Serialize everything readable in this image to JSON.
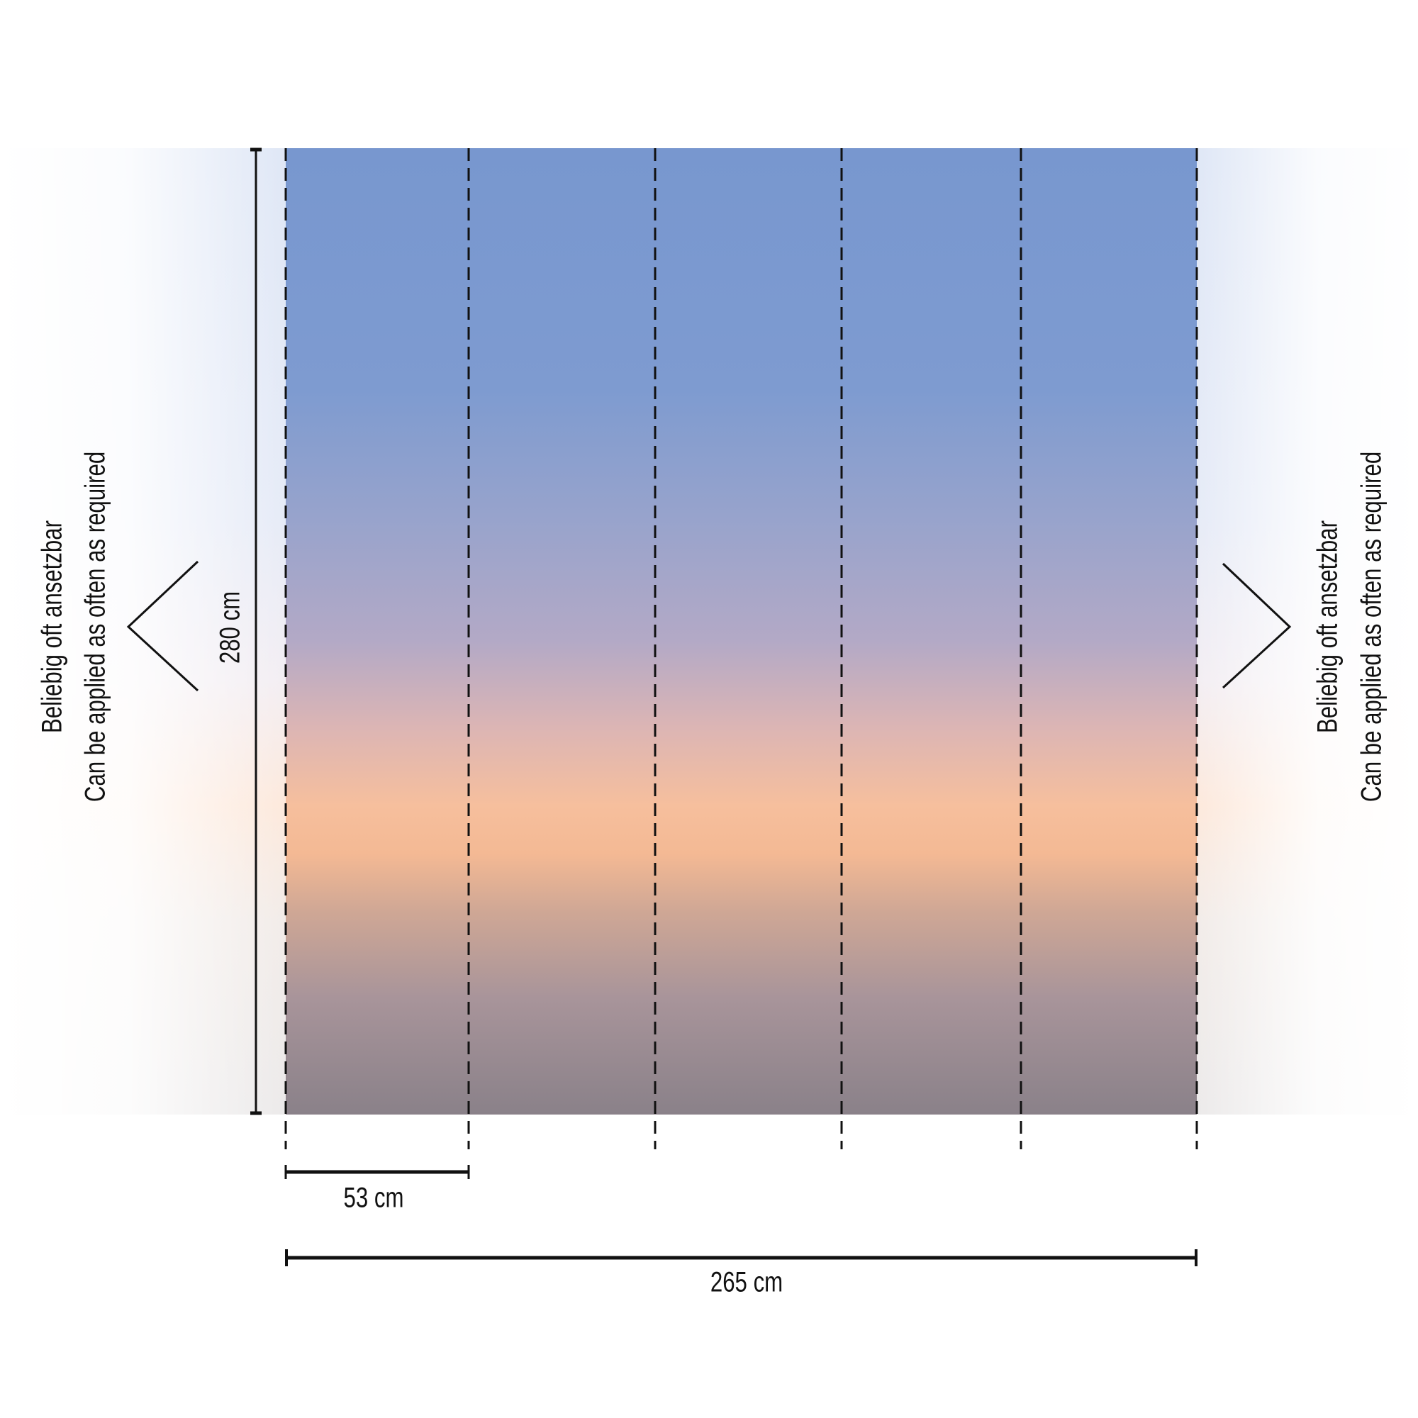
{
  "labels": {
    "height": "280 cm",
    "panel_width": "53 cm",
    "total_width": "265 cm",
    "left_note": [
      "Beliebig oft ansetzbar",
      "Can be applied as often as required"
    ],
    "right_note": [
      "Beliebig oft ansetzbar",
      "Can be applied as often as required"
    ]
  },
  "panels": 5,
  "colors": {
    "sky_top": "#7897cf",
    "horizon": "#f6bf9d",
    "sea": "#8a8189",
    "lines": "#111111"
  }
}
